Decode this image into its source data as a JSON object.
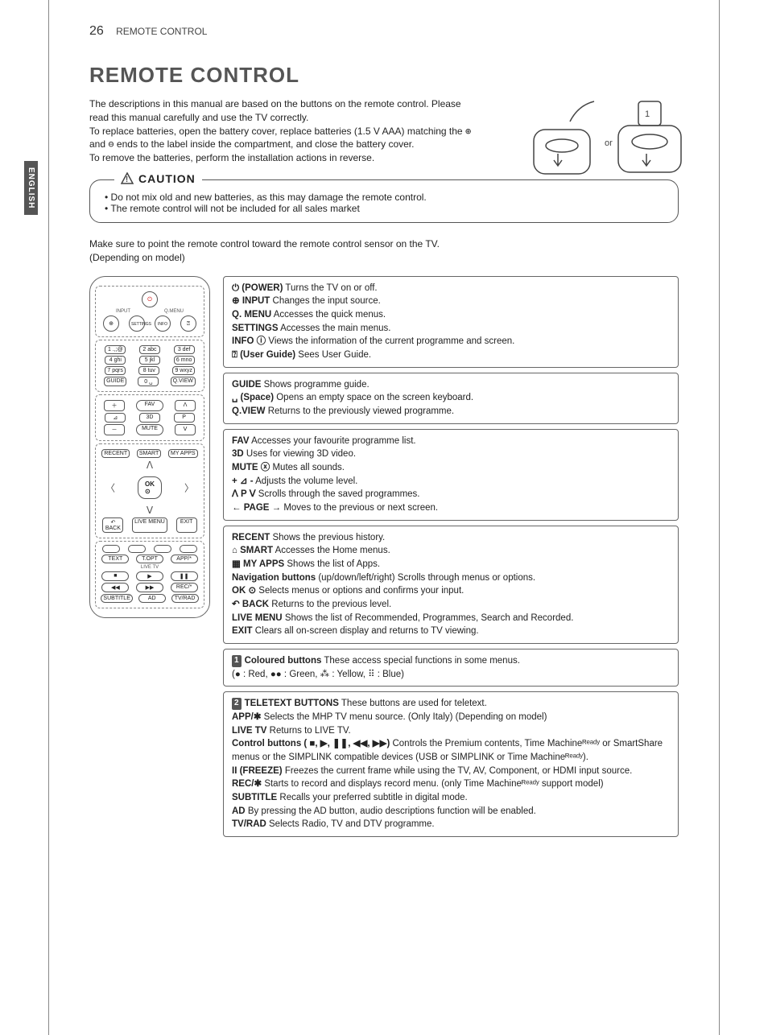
{
  "header": {
    "page_number": "26",
    "running_title": "REMOTE CONTROL",
    "side_tab": "ENGLISH"
  },
  "title": "REMOTE CONTROL",
  "intro": {
    "p1": "The descriptions in this manual are based on the buttons on the remote control. Please read this manual carefully and use the TV correctly.",
    "p2a": "To replace batteries, open the battery cover, replace batteries (1.5 V AAA) matching the ",
    "p2b": " and ",
    "p2c": " ends to the label inside the compartment, and close the battery cover.",
    "p3": "To remove the batteries, perform the installation actions in reverse.",
    "or_label": "or"
  },
  "caution": {
    "title": "CAUTION",
    "items": [
      "Do not mix old and new batteries, as this may damage the remote control.",
      "The remote control will not be included for all sales market"
    ]
  },
  "note": {
    "l1": "Make sure to point the remote control toward the remote control sensor on the TV.",
    "l2": "(Depending on model)"
  },
  "remote": {
    "input_label": "INPUT",
    "qmenu_label": "Q.MENU",
    "settings": "SETTINGS",
    "info": "INFO",
    "keypad": [
      [
        "1 .,;@",
        "2 abc",
        "3 def"
      ],
      [
        "4 ghi",
        "5 jkl",
        "6 mno"
      ],
      [
        "7 pqrs",
        "8 tuv",
        "9 wxyz"
      ],
      [
        "GUIDE",
        "0 ␣",
        "Q.VIEW"
      ]
    ],
    "fav": "FAV",
    "threeD": "3D",
    "p": "P",
    "page_side": "PAGE",
    "mute": "MUTE",
    "recent": "RECENT",
    "smart": "SMART",
    "myapps": "MY APPS",
    "ok": "OK",
    "back": "BACK",
    "livemenu": "LIVE MENU",
    "exit": "EXIT",
    "text": "TEXT",
    "topt": "T.OPT",
    "app_star": "APP/*",
    "livetv": "LIVE TV",
    "rec_star": "REC/*",
    "subtitle": "SUBTITLE",
    "ad": "AD",
    "tvrad": "TV/RAD"
  },
  "sections": [
    {
      "lines": [
        {
          "label": "⏻ (POWER)",
          "text": " Turns the TV on or off."
        },
        {
          "label": "⊕ INPUT",
          "text": " Changes the input source."
        },
        {
          "label": "Q. MENU",
          "text": " Accesses the quick menus."
        },
        {
          "label": "SETTINGS",
          "text": " Accesses the main menus."
        },
        {
          "label": "INFO ⓘ",
          "text": "  Views the information of the current programme and screen."
        },
        {
          "label": "⍰ (User Guide)",
          "text": " Sees User Guide."
        }
      ]
    },
    {
      "lines": [
        {
          "label": "GUIDE",
          "text": " Shows programme guide."
        },
        {
          "label": "␣ (Space)",
          "text": " Opens an empty space on the screen keyboard."
        },
        {
          "label": "Q.VIEW",
          "text": " Returns to the previously viewed programme."
        }
      ]
    },
    {
      "lines": [
        {
          "label": "FAV",
          "text": " Accesses your favourite programme list."
        },
        {
          "label": "3D",
          "text": " Uses for viewing 3D video."
        },
        {
          "label": "MUTE ⓧ",
          "text": " Mutes all sounds."
        },
        {
          "label": "+ ⊿ -",
          "text": "  Adjusts the volume level."
        },
        {
          "label": "ꓥ P ꓦ",
          "text": "  Scrolls through the saved programmes."
        },
        {
          "label": "← PAGE →",
          "text": "  Moves to the previous or next screen."
        }
      ]
    },
    {
      "lines": [
        {
          "label": "RECENT",
          "text": " Shows the previous history."
        },
        {
          "label": "⌂ SMART",
          "text": "  Accesses the Home menus."
        },
        {
          "label": "▦ MY APPS",
          "text": " Shows the list of Apps."
        },
        {
          "label": "Navigation buttons",
          "text": " (up/down/left/right) Scrolls through menus or options."
        },
        {
          "label": "OK ⊙",
          "text": " Selects menus or options and confirms your input."
        },
        {
          "label": "↶ BACK",
          "text": " Returns to the previous level."
        },
        {
          "label": "LIVE MENU",
          "text": " Shows the list of Recommended, Programmes, Search and Recorded."
        },
        {
          "label": "EXIT",
          "text": " Clears all on-screen display and returns to TV viewing."
        }
      ]
    },
    {
      "badge": "1",
      "lines": [
        {
          "label": "Coloured buttons",
          "text": " These access special functions in some menus."
        }
      ],
      "extra": "(● : Red, ●● : Green, ⁂ : Yellow, ⠿ : Blue)"
    },
    {
      "badge": "2",
      "lines": [
        {
          "label": "TELETEXT BUTTONS",
          "text": " These buttons are used for teletext."
        },
        {
          "label": "APP/✱",
          "text": " Selects the MHP TV menu source. (Only Italy) (Depending on model)"
        },
        {
          "label": "LIVE TV",
          "text": " Returns to LIVE TV."
        },
        {
          "label": "Control buttons ( ■, ▶, ❚❚, ◀◀, ▶▶)",
          "text": " Controls the Premium contents, Time Machineᴿᵉᵃᵈʸ or SmartShare menus or the SIMPLINK compatible devices (USB or SIMPLINK or Time Machineᴿᵉᵃᵈʸ)."
        },
        {
          "label": "II (FREEZE)",
          "text": "  Freezes the current frame while using the TV, AV,  Component, or HDMI input source."
        },
        {
          "label": "REC/✱",
          "text": " Starts to record and displays record menu. (only Time Machineᴿᵉᵃᵈʸ support model)"
        },
        {
          "label": "SUBTITLE",
          "text": " Recalls your preferred subtitle in digital mode."
        },
        {
          "label": "AD",
          "text": " By pressing the AD button, audio descriptions function will be enabled."
        },
        {
          "label": "TV/RAD",
          "text": " Selects Radio, TV and DTV programme."
        }
      ]
    }
  ]
}
